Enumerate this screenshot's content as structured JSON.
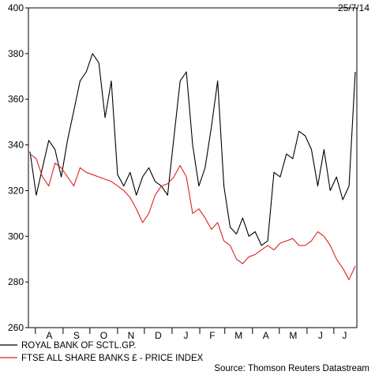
{
  "chart_data": {
    "type": "line",
    "date_label": "25/7/14",
    "source": "Source: Thomson Reuters Datastream",
    "ylim": [
      260,
      400
    ],
    "y_ticks": [
      260,
      280,
      300,
      320,
      340,
      360,
      380,
      400
    ],
    "x_month_labels": [
      "A",
      "S",
      "O",
      "N",
      "D",
      "J",
      "F",
      "M",
      "A",
      "M",
      "J",
      "J"
    ],
    "x": [
      "2013-07-26",
      "2013-08-02",
      "2013-08-09",
      "2013-08-16",
      "2013-08-23",
      "2013-08-30",
      "2013-09-06",
      "2013-09-13",
      "2013-09-20",
      "2013-09-27",
      "2013-10-04",
      "2013-10-11",
      "2013-10-18",
      "2013-10-25",
      "2013-11-01",
      "2013-11-08",
      "2013-11-15",
      "2013-11-22",
      "2013-11-29",
      "2013-12-06",
      "2013-12-13",
      "2013-12-20",
      "2013-12-27",
      "2014-01-03",
      "2014-01-10",
      "2014-01-17",
      "2014-01-24",
      "2014-01-31",
      "2014-02-07",
      "2014-02-14",
      "2014-02-21",
      "2014-02-28",
      "2014-03-07",
      "2014-03-14",
      "2014-03-21",
      "2014-03-28",
      "2014-04-04",
      "2014-04-11",
      "2014-04-18",
      "2014-04-25",
      "2014-05-02",
      "2014-05-09",
      "2014-05-16",
      "2014-05-23",
      "2014-05-30",
      "2014-06-06",
      "2014-06-13",
      "2014-06-20",
      "2014-06-27",
      "2014-07-04",
      "2014-07-11",
      "2014-07-18",
      "2014-07-25"
    ],
    "series": [
      {
        "name": "ROYAL BANK OF SCTL.GP.",
        "color": "#000000",
        "values": [
          337,
          318,
          330,
          342,
          338,
          326,
          342,
          355,
          368,
          372,
          380,
          376,
          352,
          368,
          327,
          322,
          328,
          318,
          326,
          330,
          324,
          322,
          318,
          343,
          368,
          372,
          340,
          322,
          330,
          348,
          368,
          322,
          304,
          301,
          308,
          300,
          302,
          296,
          298,
          328,
          326,
          336,
          334,
          346,
          344,
          338,
          322,
          338,
          320,
          326,
          316,
          322,
          372
        ]
      },
      {
        "name": "FTSE ALL SHARE BANKS £ - PRICE INDEX",
        "color": "#e02020",
        "values": [
          336,
          334,
          326,
          322,
          332,
          330,
          326,
          322,
          330,
          328,
          327,
          326,
          325,
          324,
          322,
          320,
          317,
          312,
          306,
          310,
          318,
          322,
          323,
          326,
          331,
          326,
          310,
          312,
          308,
          303,
          306,
          298,
          296,
          290,
          288,
          291,
          292,
          294,
          296,
          294,
          297,
          298,
          299,
          296,
          296,
          298,
          302,
          300,
          296,
          290,
          286,
          281,
          287
        ]
      }
    ]
  }
}
